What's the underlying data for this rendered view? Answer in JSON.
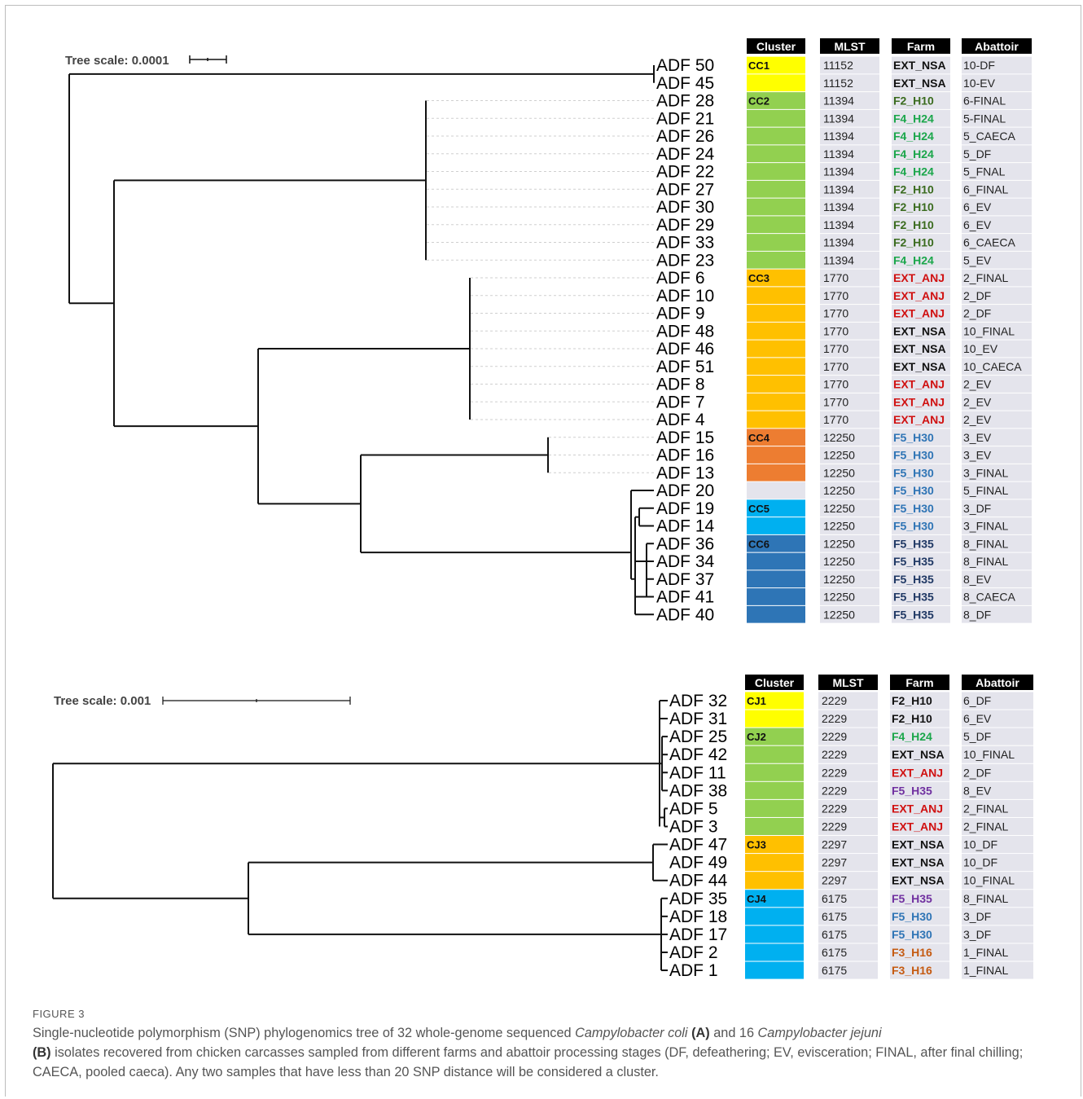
{
  "colors": {
    "yellow": "#ffff00",
    "green": "#92d050",
    "orange": "#ffc000",
    "dkorange": "#ed7d31",
    "lightblue": "#00b0f0",
    "steelblue": "#2e75b6",
    "grey": "#e4e4ec",
    "text_black": "#111111",
    "text_green": "#1aa64a",
    "text_darkgreen": "#3a6b1e",
    "text_red": "#d01010",
    "text_blue": "#2e74b5",
    "text_navy": "#1f3864",
    "text_purple": "#7030a0",
    "text_orange": "#c55a11"
  },
  "panelA": {
    "scale_label": "Tree scale: 0.0001",
    "headers": [
      "Cluster",
      "MLST",
      "Farm",
      "Abattoir"
    ],
    "rows": [
      {
        "id": "ADF 50",
        "cluster": "CC1",
        "color": "yellow",
        "mlst": "11152",
        "farm": "EXT_NSA",
        "farmColor": "text_black",
        "abattoir": "10-DF"
      },
      {
        "id": "ADF 45",
        "cluster": "",
        "color": "yellow",
        "mlst": "11152",
        "farm": "EXT_NSA",
        "farmColor": "text_black",
        "abattoir": "10-EV"
      },
      {
        "id": "ADF 28",
        "cluster": "CC2",
        "color": "green",
        "mlst": "11394",
        "farm": "F2_H10",
        "farmColor": "text_darkgreen",
        "abattoir": "6-FINAL"
      },
      {
        "id": "ADF 21",
        "cluster": "",
        "color": "green",
        "mlst": "11394",
        "farm": "F4_H24",
        "farmColor": "text_green",
        "abattoir": "5-FINAL"
      },
      {
        "id": "ADF 26",
        "cluster": "",
        "color": "green",
        "mlst": "11394",
        "farm": "F4_H24",
        "farmColor": "text_green",
        "abattoir": "5_CAECA"
      },
      {
        "id": "ADF 24",
        "cluster": "",
        "color": "green",
        "mlst": "11394",
        "farm": "F4_H24",
        "farmColor": "text_green",
        "abattoir": "5_DF"
      },
      {
        "id": "ADF 22",
        "cluster": "",
        "color": "green",
        "mlst": "11394",
        "farm": "F4_H24",
        "farmColor": "text_green",
        "abattoir": "5_FNAL"
      },
      {
        "id": "ADF 27",
        "cluster": "",
        "color": "green",
        "mlst": "11394",
        "farm": "F2_H10",
        "farmColor": "text_darkgreen",
        "abattoir": "6_FINAL"
      },
      {
        "id": "ADF 30",
        "cluster": "",
        "color": "green",
        "mlst": "11394",
        "farm": "F2_H10",
        "farmColor": "text_darkgreen",
        "abattoir": "6_EV"
      },
      {
        "id": "ADF 29",
        "cluster": "",
        "color": "green",
        "mlst": "11394",
        "farm": "F2_H10",
        "farmColor": "text_darkgreen",
        "abattoir": "6_EV"
      },
      {
        "id": "ADF 33",
        "cluster": "",
        "color": "green",
        "mlst": "11394",
        "farm": "F2_H10",
        "farmColor": "text_darkgreen",
        "abattoir": "6_CAECA"
      },
      {
        "id": "ADF 23",
        "cluster": "",
        "color": "green",
        "mlst": "11394",
        "farm": "F4_H24",
        "farmColor": "text_green",
        "abattoir": "5_EV"
      },
      {
        "id": "ADF 6",
        "cluster": "CC3",
        "color": "orange",
        "mlst": "1770",
        "farm": "EXT_ANJ",
        "farmColor": "text_red",
        "abattoir": "2_FINAL"
      },
      {
        "id": "ADF 10",
        "cluster": "",
        "color": "orange",
        "mlst": "1770",
        "farm": "EXT_ANJ",
        "farmColor": "text_red",
        "abattoir": "2_DF"
      },
      {
        "id": "ADF 9",
        "cluster": "",
        "color": "orange",
        "mlst": "1770",
        "farm": "EXT_ANJ",
        "farmColor": "text_red",
        "abattoir": "2_DF"
      },
      {
        "id": "ADF 48",
        "cluster": "",
        "color": "orange",
        "mlst": "1770",
        "farm": "EXT_NSA",
        "farmColor": "text_black",
        "abattoir": "10_FINAL"
      },
      {
        "id": "ADF 46",
        "cluster": "",
        "color": "orange",
        "mlst": "1770",
        "farm": "EXT_NSA",
        "farmColor": "text_black",
        "abattoir": "10_EV"
      },
      {
        "id": "ADF 51",
        "cluster": "",
        "color": "orange",
        "mlst": "1770",
        "farm": "EXT_NSA",
        "farmColor": "text_black",
        "abattoir": "10_CAECA"
      },
      {
        "id": "ADF 8",
        "cluster": "",
        "color": "orange",
        "mlst": "1770",
        "farm": "EXT_ANJ",
        "farmColor": "text_red",
        "abattoir": "2_EV"
      },
      {
        "id": "ADF 7",
        "cluster": "",
        "color": "orange",
        "mlst": "1770",
        "farm": "EXT_ANJ",
        "farmColor": "text_red",
        "abattoir": "2_EV"
      },
      {
        "id": "ADF 4",
        "cluster": "",
        "color": "orange",
        "mlst": "1770",
        "farm": "EXT_ANJ",
        "farmColor": "text_red",
        "abattoir": "2_EV"
      },
      {
        "id": "ADF 15",
        "cluster": "CC4",
        "color": "dkorange",
        "mlst": "12250",
        "farm": "F5_H30",
        "farmColor": "text_blue",
        "abattoir": "3_EV"
      },
      {
        "id": "ADF 16",
        "cluster": "",
        "color": "dkorange",
        "mlst": "12250",
        "farm": "F5_H30",
        "farmColor": "text_blue",
        "abattoir": "3_EV"
      },
      {
        "id": "ADF 13",
        "cluster": "",
        "color": "dkorange",
        "mlst": "12250",
        "farm": "F5_H30",
        "farmColor": "text_blue",
        "abattoir": "3_FINAL"
      },
      {
        "id": "ADF 20",
        "cluster": "",
        "color": "grey",
        "mlst": "12250",
        "farm": "F5_H30",
        "farmColor": "text_blue",
        "abattoir": "5_FINAL"
      },
      {
        "id": "ADF 19",
        "cluster": "CC5",
        "color": "lightblue",
        "mlst": "12250",
        "farm": "F5_H30",
        "farmColor": "text_blue",
        "abattoir": "3_DF"
      },
      {
        "id": "ADF 14",
        "cluster": "",
        "color": "lightblue",
        "mlst": "12250",
        "farm": "F5_H30",
        "farmColor": "text_blue",
        "abattoir": "3_FINAL"
      },
      {
        "id": "ADF 36",
        "cluster": "CC6",
        "color": "steelblue",
        "mlst": "12250",
        "farm": "F5_H35",
        "farmColor": "text_navy",
        "abattoir": "8_FINAL"
      },
      {
        "id": "ADF 34",
        "cluster": "",
        "color": "steelblue",
        "mlst": "12250",
        "farm": "F5_H35",
        "farmColor": "text_navy",
        "abattoir": "8_FINAL"
      },
      {
        "id": "ADF 37",
        "cluster": "",
        "color": "steelblue",
        "mlst": "12250",
        "farm": "F5_H35",
        "farmColor": "text_navy",
        "abattoir": "8_EV"
      },
      {
        "id": "ADF 41",
        "cluster": "",
        "color": "steelblue",
        "mlst": "12250",
        "farm": "F5_H35",
        "farmColor": "text_navy",
        "abattoir": "8_CAECA"
      },
      {
        "id": "ADF 40",
        "cluster": "",
        "color": "steelblue",
        "mlst": "12250",
        "farm": "F5_H35",
        "farmColor": "text_navy",
        "abattoir": "8_DF"
      }
    ]
  },
  "panelB": {
    "scale_label": "Tree scale: 0.001",
    "headers": [
      "Cluster",
      "MLST",
      "Farm",
      "Abattoir"
    ],
    "rows": [
      {
        "id": "ADF 32",
        "cluster": "CJ1",
        "color": "yellow",
        "mlst": "2229",
        "farm": "F2_H10",
        "farmColor": "text_black",
        "abattoir": "6_DF"
      },
      {
        "id": "ADF 31",
        "cluster": "",
        "color": "yellow",
        "mlst": "2229",
        "farm": "F2_H10",
        "farmColor": "text_black",
        "abattoir": "6_EV"
      },
      {
        "id": "ADF 25",
        "cluster": "CJ2",
        "color": "green",
        "mlst": "2229",
        "farm": "F4_H24",
        "farmColor": "text_green",
        "abattoir": "5_DF"
      },
      {
        "id": "ADF 42",
        "cluster": "",
        "color": "green",
        "mlst": "2229",
        "farm": "EXT_NSA",
        "farmColor": "text_black",
        "abattoir": "10_FINAL"
      },
      {
        "id": "ADF 11",
        "cluster": "",
        "color": "green",
        "mlst": "2229",
        "farm": "EXT_ANJ",
        "farmColor": "text_red",
        "abattoir": "2_DF"
      },
      {
        "id": "ADF 38",
        "cluster": "",
        "color": "green",
        "mlst": "2229",
        "farm": "F5_H35",
        "farmColor": "text_purple",
        "abattoir": "8_EV"
      },
      {
        "id": "ADF 5",
        "cluster": "",
        "color": "green",
        "mlst": "2229",
        "farm": "EXT_ANJ",
        "farmColor": "text_red",
        "abattoir": "2_FINAL"
      },
      {
        "id": "ADF 3",
        "cluster": "",
        "color": "green",
        "mlst": "2229",
        "farm": "EXT_ANJ",
        "farmColor": "text_red",
        "abattoir": "2_FINAL"
      },
      {
        "id": "ADF 47",
        "cluster": "CJ3",
        "color": "orange",
        "mlst": "2297",
        "farm": "EXT_NSA",
        "farmColor": "text_black",
        "abattoir": "10_DF"
      },
      {
        "id": "ADF 49",
        "cluster": "",
        "color": "orange",
        "mlst": "2297",
        "farm": "EXT_NSA",
        "farmColor": "text_black",
        "abattoir": "10_DF"
      },
      {
        "id": "ADF 44",
        "cluster": "",
        "color": "orange",
        "mlst": "2297",
        "farm": "EXT_NSA",
        "farmColor": "text_black",
        "abattoir": "10_FINAL"
      },
      {
        "id": "ADF 35",
        "cluster": "CJ4",
        "color": "lightblue",
        "mlst": "6175",
        "farm": "F5_H35",
        "farmColor": "text_purple",
        "abattoir": "8_FINAL"
      },
      {
        "id": "ADF 18",
        "cluster": "",
        "color": "lightblue",
        "mlst": "6175",
        "farm": "F5_H30",
        "farmColor": "text_blue",
        "abattoir": "3_DF"
      },
      {
        "id": "ADF 17",
        "cluster": "",
        "color": "lightblue",
        "mlst": "6175",
        "farm": "F5_H30",
        "farmColor": "text_blue",
        "abattoir": "3_DF"
      },
      {
        "id": "ADF 2",
        "cluster": "",
        "color": "lightblue",
        "mlst": "6175",
        "farm": "F3_H16",
        "farmColor": "text_orange",
        "abattoir": "1_FINAL"
      },
      {
        "id": "ADF 1",
        "cluster": "",
        "color": "lightblue",
        "mlst": "6175",
        "farm": "F3_H16",
        "farmColor": "text_orange",
        "abattoir": "1_FINAL"
      }
    ]
  },
  "caption": {
    "label": "FIGURE 3",
    "t1": "Single-nucleotide polymorphism (SNP) phylogenomics tree of 32 whole-genome sequenced ",
    "i1": "Campylobacter coli",
    "b1": "(A)",
    "t2": " and 16 ",
    "i2": "Campylobacter jejuni",
    "b2": "(B)",
    "t3": " isolates recovered from chicken carcasses sampled from different farms and abattoir processing stages (DF, defeathering; EV, evisceration; FINAL, after final chilling; CAECA, pooled caeca). Any two samples that have less than 20 SNP distance will be considered a cluster."
  }
}
